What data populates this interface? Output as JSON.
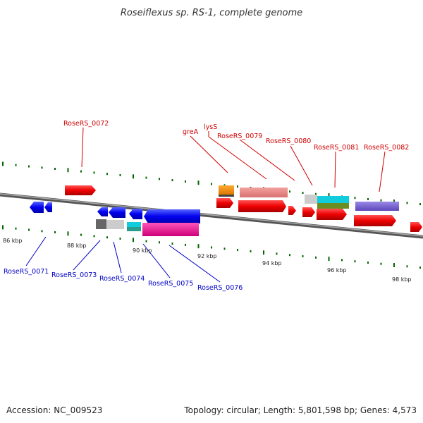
{
  "title": "Roseiflexus sp. RS-1, complete genome",
  "footer": {
    "accession": "Accession: NC_009523",
    "topology": "Topology: circular; Length: 5,801,598 bp; Genes: 4,573"
  },
  "scale_labels": [
    "86 kbp",
    "88 kbp",
    "90 kbp",
    "92 kbp",
    "94 kbp",
    "96 kbp",
    "98 kbp"
  ],
  "gene_labels": {
    "top": [
      "RoseRS_0072",
      "greA",
      "lysS",
      "RoseRS_0079",
      "RoseRS_0080",
      "RoseRS_0081",
      "RoseRS_0082"
    ],
    "bottom": [
      "RoseRS_0071",
      "RoseRS_0073",
      "RoseRS_0074",
      "RoseRS_0075",
      "RoseRS_0076"
    ]
  },
  "colors": {
    "forward_gene": "#ff0000",
    "reverse_gene": "#0000ff",
    "label_forward": "#d00000",
    "label_reverse": "#0000c8",
    "tick": "#006600",
    "backbone": "#888888"
  }
}
